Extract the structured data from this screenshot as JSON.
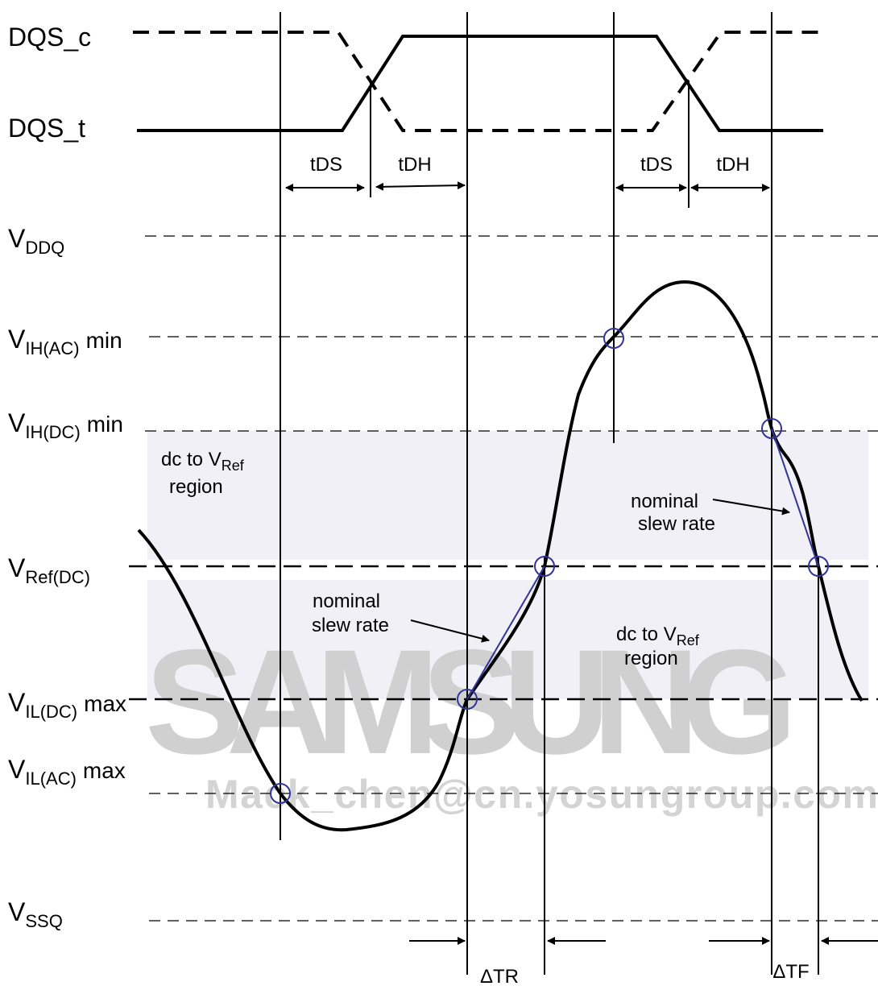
{
  "signals": [
    "DQS_c",
    "DQS_t"
  ],
  "timings": [
    "tDS",
    "tDH",
    "tDS",
    "tDH"
  ],
  "levels": [
    {
      "main": "V",
      "sub": "DDQ"
    },
    {
      "main": "V",
      "sub": "IH(AC)",
      "suffix": "min"
    },
    {
      "main": "V",
      "sub": "IH(DC)",
      "suffix": "min"
    },
    {
      "main": "V",
      "sub": "Ref(DC)"
    },
    {
      "main": "V",
      "sub": "IL(DC)",
      "suffix": "max"
    },
    {
      "main": "V",
      "sub": "IL(AC)",
      "suffix": "max"
    },
    {
      "main": "V",
      "sub": "SSQ"
    }
  ],
  "regions": [
    {
      "text": "dc to V",
      "sub": "Ref",
      "line2": "region"
    },
    {
      "text": "dc to V",
      "sub": "Ref",
      "line2": "region"
    }
  ],
  "slew_labels": [
    {
      "line1": "nominal",
      "line2": "slew rate"
    },
    {
      "line1": "nominal",
      "line2": "slew rate"
    }
  ],
  "deltas": [
    "ΔTR",
    "ΔTF"
  ],
  "watermark": {
    "brand": "SAMSUNG",
    "email": "Mack_chen@cn.yosungroup.com"
  }
}
